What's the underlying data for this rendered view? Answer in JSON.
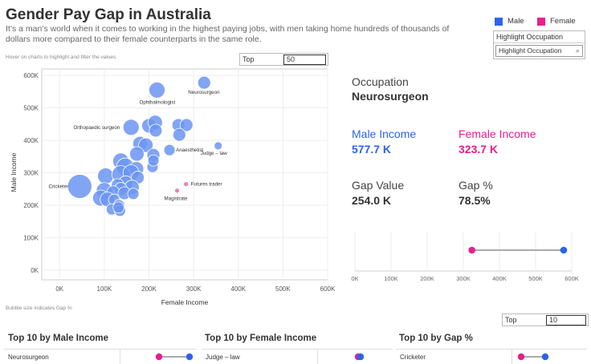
{
  "header": {
    "title": "Gender Pay Gap in Australia",
    "subtitle": "It’s a man’s world when it comes to working in the highest paying jobs, with men taking home hundreds of thousands of dollars more compared to their female counterparts in the same role."
  },
  "legend": {
    "male": "Male",
    "female": "Female",
    "male_color": "#2b63f0",
    "female_color": "#e91e8c"
  },
  "highlight": {
    "title": "Highlight Occupation",
    "placeholder": "Highlight Occupation"
  },
  "hint": "Hover on charts to highlight and filter the values",
  "bubble_note": "Bubble size indicates Gap %",
  "top_filter_1": {
    "label": "Top",
    "value": "50"
  },
  "top_filter_2": {
    "label": "Top",
    "value": "10"
  },
  "detail": {
    "occupation_label": "Occupation",
    "occupation_value": "Neurosurgeon",
    "male_income_label": "Male Income",
    "male_income_value": "577.7 K",
    "female_income_label": "Female Income",
    "female_income_value": "323.7 K",
    "gap_value_label": "Gap Value",
    "gap_value_value": "254.0 K",
    "gap_pct_label": "Gap %",
    "gap_pct_value": "78.5%"
  },
  "sections": {
    "male_title": "Top 10 by Male Income",
    "female_title": "Top 10 by Female Income",
    "gap_title": "Top 10 by Gap %",
    "male_first": "Neurosurgeon",
    "female_first": "Judge – law",
    "gap_first": "Cricketer"
  },
  "chart_data": [
    {
      "type": "scatter",
      "title": "",
      "xlabel": "Female Income",
      "ylabel": "Male Income",
      "xlim": [
        -40000,
        600000
      ],
      "ylim": [
        -30000,
        620000
      ],
      "x_ticks": [
        0,
        100000,
        200000,
        300000,
        400000,
        500000,
        600000
      ],
      "x_tick_labels": [
        "0K",
        "100K",
        "200K",
        "300K",
        "400K",
        "500K",
        "600K"
      ],
      "y_ticks": [
        0,
        100000,
        200000,
        300000,
        400000,
        500000,
        600000
      ],
      "y_tick_labels": [
        "0K",
        "100K",
        "200K",
        "300K",
        "400K",
        "500K",
        "600K"
      ],
      "grid": true,
      "size_encoding": "Gap %",
      "points": [
        {
          "label": "Neurosurgeon",
          "x": 323700,
          "y": 577700,
          "s": 8,
          "c": "male"
        },
        {
          "label": "Ophthalmologist",
          "x": 218000,
          "y": 555000,
          "s": 10,
          "c": "male"
        },
        {
          "label": "Orthopaedic surgeon",
          "x": 160000,
          "y": 440000,
          "s": 10,
          "c": "male"
        },
        {
          "label": "Anaesthetist",
          "x": 246000,
          "y": 370000,
          "s": 7,
          "c": "male"
        },
        {
          "label": "Judge – law",
          "x": 355000,
          "y": 383000,
          "s": 5,
          "c": "male"
        },
        {
          "label": "Futures trader",
          "x": 283000,
          "y": 265000,
          "s": 3,
          "c": "female"
        },
        {
          "label": "Magistrate",
          "x": 263000,
          "y": 245000,
          "s": 3,
          "c": "female"
        },
        {
          "label": "Cricketer",
          "x": 45000,
          "y": 258000,
          "s": 15,
          "c": "male"
        },
        {
          "label": "",
          "x": 200000,
          "y": 445000,
          "s": 9,
          "c": "male"
        },
        {
          "label": "",
          "x": 214000,
          "y": 455000,
          "s": 9,
          "c": "male"
        },
        {
          "label": "",
          "x": 215000,
          "y": 430000,
          "s": 8,
          "c": "male"
        },
        {
          "label": "",
          "x": 266000,
          "y": 447000,
          "s": 8,
          "c": "male"
        },
        {
          "label": "",
          "x": 284000,
          "y": 447000,
          "s": 8,
          "c": "male"
        },
        {
          "label": "",
          "x": 268000,
          "y": 417000,
          "s": 8,
          "c": "male"
        },
        {
          "label": "",
          "x": 180000,
          "y": 390000,
          "s": 9,
          "c": "male"
        },
        {
          "label": "",
          "x": 193000,
          "y": 385000,
          "s": 9,
          "c": "male"
        },
        {
          "label": "",
          "x": 173000,
          "y": 358000,
          "s": 9,
          "c": "male"
        },
        {
          "label": "",
          "x": 210000,
          "y": 355000,
          "s": 8,
          "c": "male"
        },
        {
          "label": "",
          "x": 137000,
          "y": 336000,
          "s": 10,
          "c": "male"
        },
        {
          "label": "",
          "x": 147000,
          "y": 318000,
          "s": 11,
          "c": "male"
        },
        {
          "label": "",
          "x": 172000,
          "y": 312000,
          "s": 9,
          "c": "male"
        },
        {
          "label": "",
          "x": 208000,
          "y": 318000,
          "s": 7,
          "c": "male"
        },
        {
          "label": "",
          "x": 210000,
          "y": 338000,
          "s": 7,
          "c": "male"
        },
        {
          "label": "",
          "x": 103000,
          "y": 290000,
          "s": 10,
          "c": "male"
        },
        {
          "label": "",
          "x": 137000,
          "y": 295000,
          "s": 11,
          "c": "male"
        },
        {
          "label": "",
          "x": 160000,
          "y": 300000,
          "s": 10,
          "c": "male"
        },
        {
          "label": "",
          "x": 175000,
          "y": 285000,
          "s": 8,
          "c": "male"
        },
        {
          "label": "",
          "x": 148000,
          "y": 268000,
          "s": 9,
          "c": "male"
        },
        {
          "label": "",
          "x": 130000,
          "y": 262000,
          "s": 8,
          "c": "male"
        },
        {
          "label": "",
          "x": 162000,
          "y": 255000,
          "s": 9,
          "c": "male"
        },
        {
          "label": "",
          "x": 137000,
          "y": 250000,
          "s": 8,
          "c": "male"
        },
        {
          "label": "",
          "x": 100000,
          "y": 245000,
          "s": 10,
          "c": "male"
        },
        {
          "label": "",
          "x": 120000,
          "y": 240000,
          "s": 8,
          "c": "male"
        },
        {
          "label": "",
          "x": 145000,
          "y": 237000,
          "s": 8,
          "c": "male"
        },
        {
          "label": "",
          "x": 165000,
          "y": 235000,
          "s": 7,
          "c": "male"
        },
        {
          "label": "",
          "x": 92000,
          "y": 222000,
          "s": 10,
          "c": "male"
        },
        {
          "label": "",
          "x": 107000,
          "y": 218000,
          "s": 9,
          "c": "male"
        },
        {
          "label": "",
          "x": 122000,
          "y": 217000,
          "s": 7,
          "c": "male"
        },
        {
          "label": "",
          "x": 133000,
          "y": 200000,
          "s": 7,
          "c": "male"
        },
        {
          "label": "",
          "x": 117000,
          "y": 187000,
          "s": 7,
          "c": "male"
        },
        {
          "label": "",
          "x": 135000,
          "y": 183000,
          "s": 7,
          "c": "male"
        },
        {
          "label": "",
          "x": 132000,
          "y": 193000,
          "s": 7,
          "c": "male"
        }
      ]
    },
    {
      "type": "dumbbell",
      "title": "",
      "xlim": [
        0,
        600000
      ],
      "x_ticks": [
        0,
        100000,
        200000,
        300000,
        400000,
        500000,
        600000
      ],
      "x_tick_labels": [
        "0K",
        "100K",
        "200K",
        "300K",
        "400K",
        "500K",
        "600K"
      ],
      "category": "Neurosurgeon",
      "female": 323700,
      "male": 577700
    }
  ]
}
